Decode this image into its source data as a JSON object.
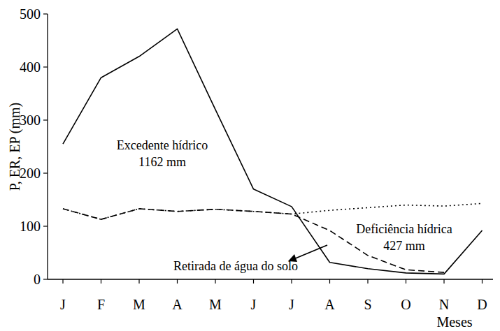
{
  "chart_data": {
    "type": "line",
    "categories": [
      "J",
      "F",
      "M",
      "A",
      "M",
      "J",
      "J",
      "A",
      "S",
      "O",
      "N",
      "D"
    ],
    "x_label": "Meses",
    "y_label": "P, ER, EP (mm)",
    "ylim": [
      0,
      500
    ],
    "yticks": [
      0,
      100,
      200,
      300,
      400,
      500
    ],
    "grid": false,
    "series": [
      {
        "color": "#000000",
        "line_style": "solid",
        "values": [
          255,
          380,
          420,
          472,
          320,
          170,
          137,
          32,
          20,
          12,
          10,
          92
        ]
      },
      {
        "color": "#000000",
        "line_style": "dashed",
        "values": [
          133,
          113,
          133,
          128,
          132,
          128,
          123,
          92,
          45,
          18,
          13,
          null
        ]
      },
      {
        "color": "#000000",
        "line_style": "dotted",
        "values": [
          133,
          113,
          133,
          128,
          132,
          128,
          123,
          130,
          135,
          140,
          138,
          143
        ]
      }
    ],
    "annotations": [
      {
        "text": "Excedente hídrico"
      },
      {
        "text": "1162 mm"
      },
      {
        "text": "Deficiência hídrica"
      },
      {
        "text": "427 mm"
      },
      {
        "text": "Retirada de água do solo"
      }
    ]
  }
}
